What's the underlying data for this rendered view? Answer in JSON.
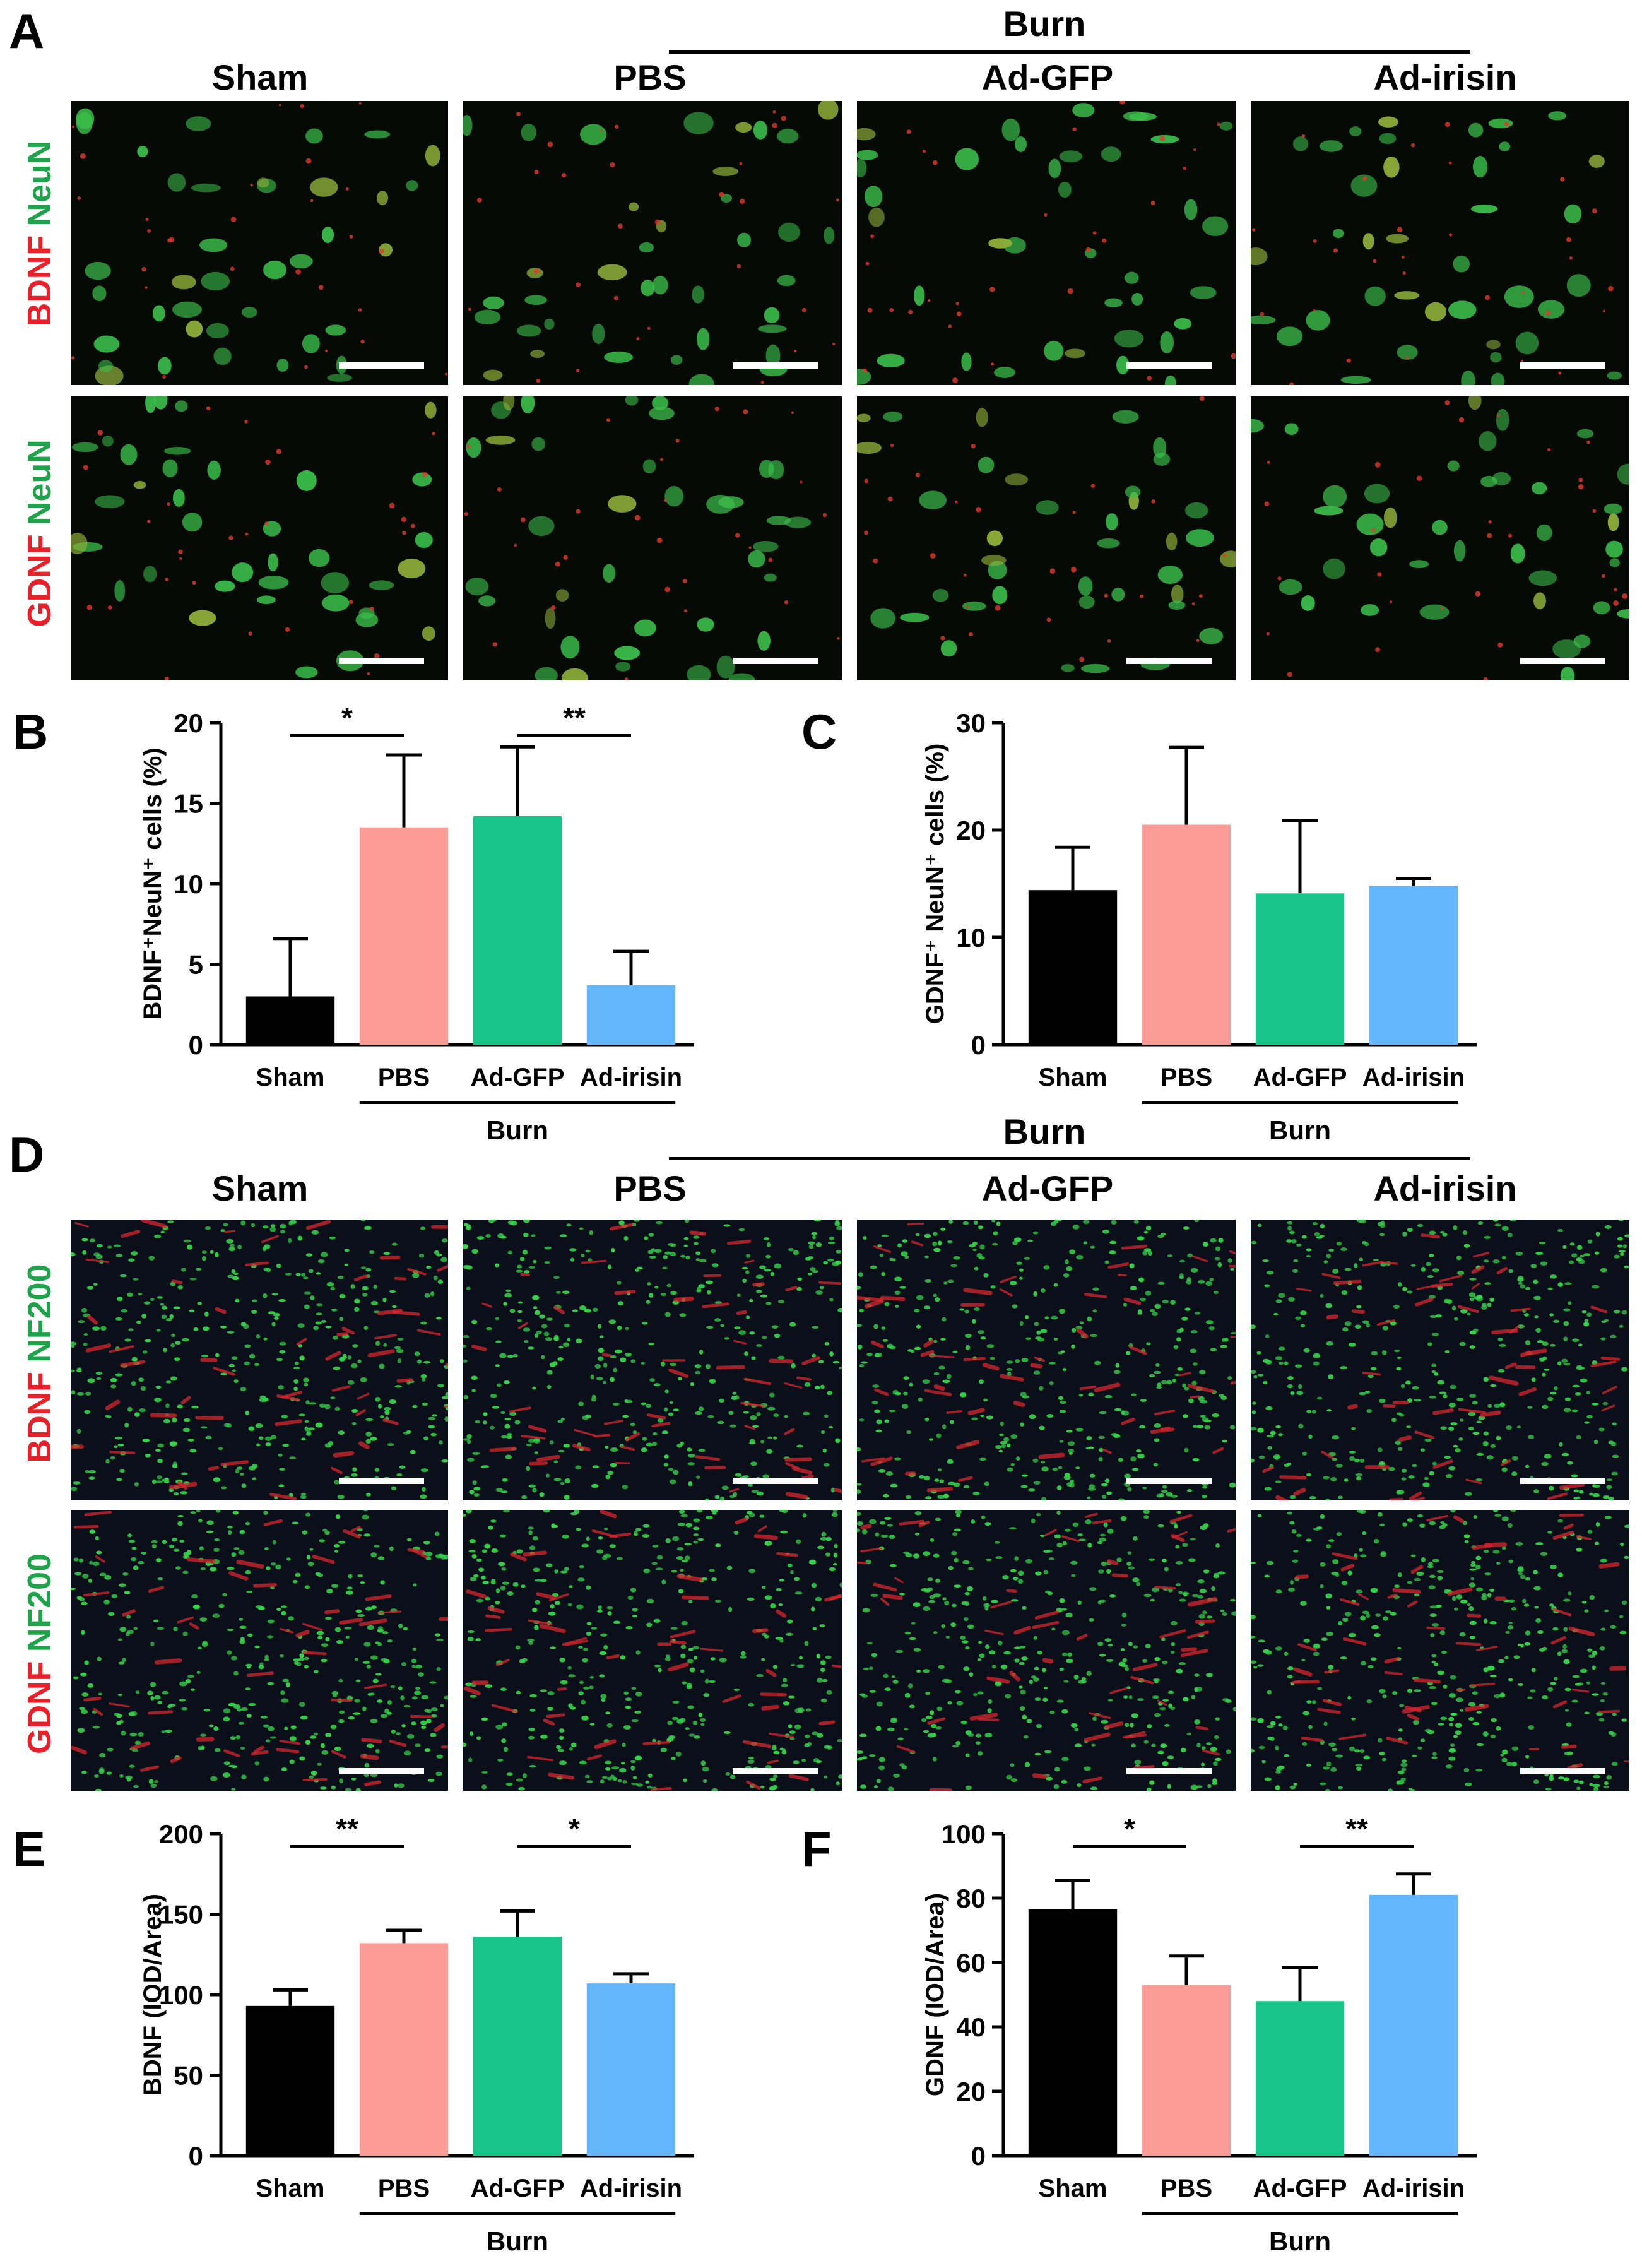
{
  "panels": {
    "A": "A",
    "B": "B",
    "C": "C",
    "D": "D",
    "E": "E",
    "F": "F"
  },
  "groups": [
    "Sham",
    "PBS",
    "Ad-GFP",
    "Ad-irisin"
  ],
  "burn_label": "Burn",
  "row_labels": {
    "bdnf_neun": [
      "BDNF",
      " NeuN"
    ],
    "gdnf_neun": [
      "GDNF",
      " NeuN"
    ],
    "bdnf_nf200": [
      "BDNF",
      " NF200"
    ],
    "gdnf_nf200": [
      "GDNF",
      " NF200"
    ]
  },
  "colors": {
    "Sham": "#000000",
    "PBS": "#fa9c95",
    "Ad-GFP": "#19c48b",
    "Ad-irisin": "#63b6f9",
    "red_stain": "#e8202a",
    "green_stain": "#1fa34a"
  },
  "chart_data": [
    {
      "panel": "B",
      "type": "bar",
      "categories": [
        "Sham",
        "PBS",
        "Ad-GFP",
        "Ad-irisin"
      ],
      "values": [
        3.0,
        13.5,
        14.2,
        3.7
      ],
      "errors": [
        3.6,
        4.5,
        4.3,
        2.1
      ],
      "ylabel": "BDNF⁺NeuN⁺ cells (%)",
      "ylim": [
        0,
        20
      ],
      "yticks": [
        0,
        5,
        10,
        15,
        20
      ],
      "group_label": "Burn",
      "significance": [
        {
          "from": 0,
          "to": 1,
          "label": "*"
        },
        {
          "from": 2,
          "to": 3,
          "label": "**"
        }
      ]
    },
    {
      "panel": "C",
      "type": "bar",
      "categories": [
        "Sham",
        "PBS",
        "Ad-GFP",
        "Ad-irisin"
      ],
      "values": [
        14.4,
        20.5,
        14.1,
        14.8
      ],
      "errors": [
        4.0,
        7.2,
        6.8,
        0.7
      ],
      "ylabel": "GDNF⁺ NeuN⁺ cells (%)",
      "ylim": [
        0,
        30
      ],
      "yticks": [
        0,
        10,
        20,
        30
      ],
      "group_label": "Burn",
      "significance": []
    },
    {
      "panel": "E",
      "type": "bar",
      "categories": [
        "Sham",
        "PBS",
        "Ad-GFP",
        "Ad-irisin"
      ],
      "values": [
        93,
        132,
        136,
        107
      ],
      "errors": [
        10,
        8,
        16,
        6
      ],
      "ylabel": "BDNF (IOD/Area)",
      "ylim": [
        0,
        200
      ],
      "yticks": [
        0,
        50,
        100,
        150,
        200
      ],
      "group_label": "Burn",
      "significance": [
        {
          "from": 0,
          "to": 1,
          "label": "**"
        },
        {
          "from": 2,
          "to": 3,
          "label": "*"
        }
      ]
    },
    {
      "panel": "F",
      "type": "bar",
      "categories": [
        "Sham",
        "PBS",
        "Ad-GFP",
        "Ad-irisin"
      ],
      "values": [
        76.5,
        53,
        48,
        81
      ],
      "errors": [
        9.0,
        9.0,
        10.5,
        6.5
      ],
      "ylabel": "GDNF (IOD/Area)",
      "ylim": [
        0,
        100
      ],
      "yticks": [
        0,
        20,
        40,
        60,
        80,
        100
      ],
      "group_label": "Burn",
      "significance": [
        {
          "from": 0,
          "to": 1,
          "label": "*"
        },
        {
          "from": 2,
          "to": 3,
          "label": "**"
        }
      ]
    }
  ]
}
